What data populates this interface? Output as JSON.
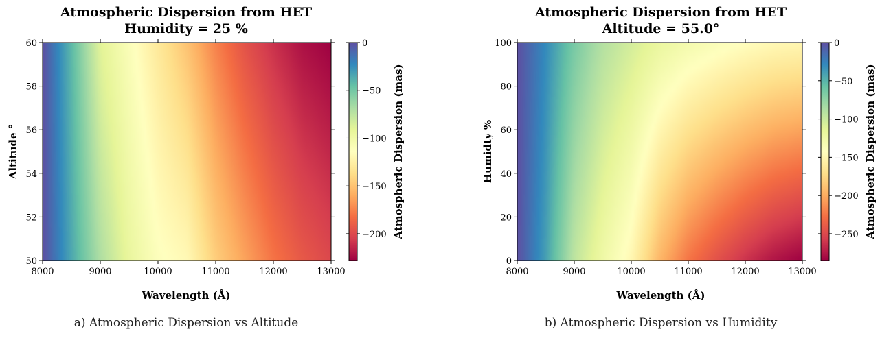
{
  "palette": [
    "#5e4fa2",
    "#3288bd",
    "#66c2a5",
    "#abdda4",
    "#e6f598",
    "#ffffbf",
    "#fee08b",
    "#fdae61",
    "#f46d43",
    "#d53e4f",
    "#9e0142"
  ],
  "chart_data": [
    {
      "type": "heatmap",
      "title_line1": "Atmospheric Dispersion from HET",
      "title_line2": "Humidity = 25 %",
      "xlabel": "Wavelength (Å)",
      "ylabel": "Altitude °",
      "colorbar_label": "Atmospheric Dispersion (mas)",
      "xlim": [
        8000,
        13000
      ],
      "ylim": [
        50,
        60
      ],
      "clim": [
        -228,
        0
      ],
      "xticks": [
        8000,
        9000,
        10000,
        11000,
        12000,
        13000
      ],
      "yticks": [
        50,
        52,
        54,
        56,
        58,
        60
      ],
      "cticks": [
        0,
        -50,
        -100,
        -150,
        -200
      ],
      "surface": {
        "x": [
          8000,
          8500,
          9000,
          9500,
          10000,
          10500,
          11000,
          11500,
          12000,
          12500,
          13000
        ],
        "y": [
          50,
          60
        ],
        "z": [
          [
            0,
            -35,
            -70,
            -95,
            -112,
            -118,
            -145,
            -163,
            -180,
            -192,
            -200
          ],
          [
            0,
            -42,
            -90,
            -110,
            -130,
            -150,
            -175,
            -195,
            -210,
            -222,
            -228
          ]
        ]
      },
      "caption": "a) Atmospheric Dispersion vs Altitude"
    },
    {
      "type": "heatmap",
      "title_line1": "Atmospheric Dispersion from HET",
      "title_line2": "Altitude = 55.0°",
      "xlabel": "Wavelength (Å)",
      "ylabel": "Humidty %",
      "colorbar_label": "Atmospheric Dispersion (mas)",
      "xlim": [
        8000,
        13000
      ],
      "ylim": [
        0,
        100
      ],
      "clim": [
        -285,
        0
      ],
      "xticks": [
        8000,
        9000,
        10000,
        11000,
        12000,
        13000
      ],
      "yticks": [
        0,
        20,
        40,
        60,
        80,
        100
      ],
      "cticks": [
        0,
        -50,
        -100,
        -150,
        -200,
        -250
      ],
      "surface": {
        "x": [
          8000,
          8500,
          9000,
          9500,
          10000,
          10500,
          11000,
          11500,
          12000,
          12500,
          13000
        ],
        "y": [
          0,
          100
        ],
        "z": [
          [
            0,
            -40,
            -95,
            -125,
            -150,
            -195,
            -225,
            -245,
            -262,
            -276,
            -285
          ],
          [
            0,
            -30,
            -65,
            -90,
            -105,
            -120,
            -130,
            -137,
            -143,
            -148,
            -150
          ]
        ]
      },
      "caption": "b) Atmospheric Dispersion vs Humidity"
    }
  ]
}
